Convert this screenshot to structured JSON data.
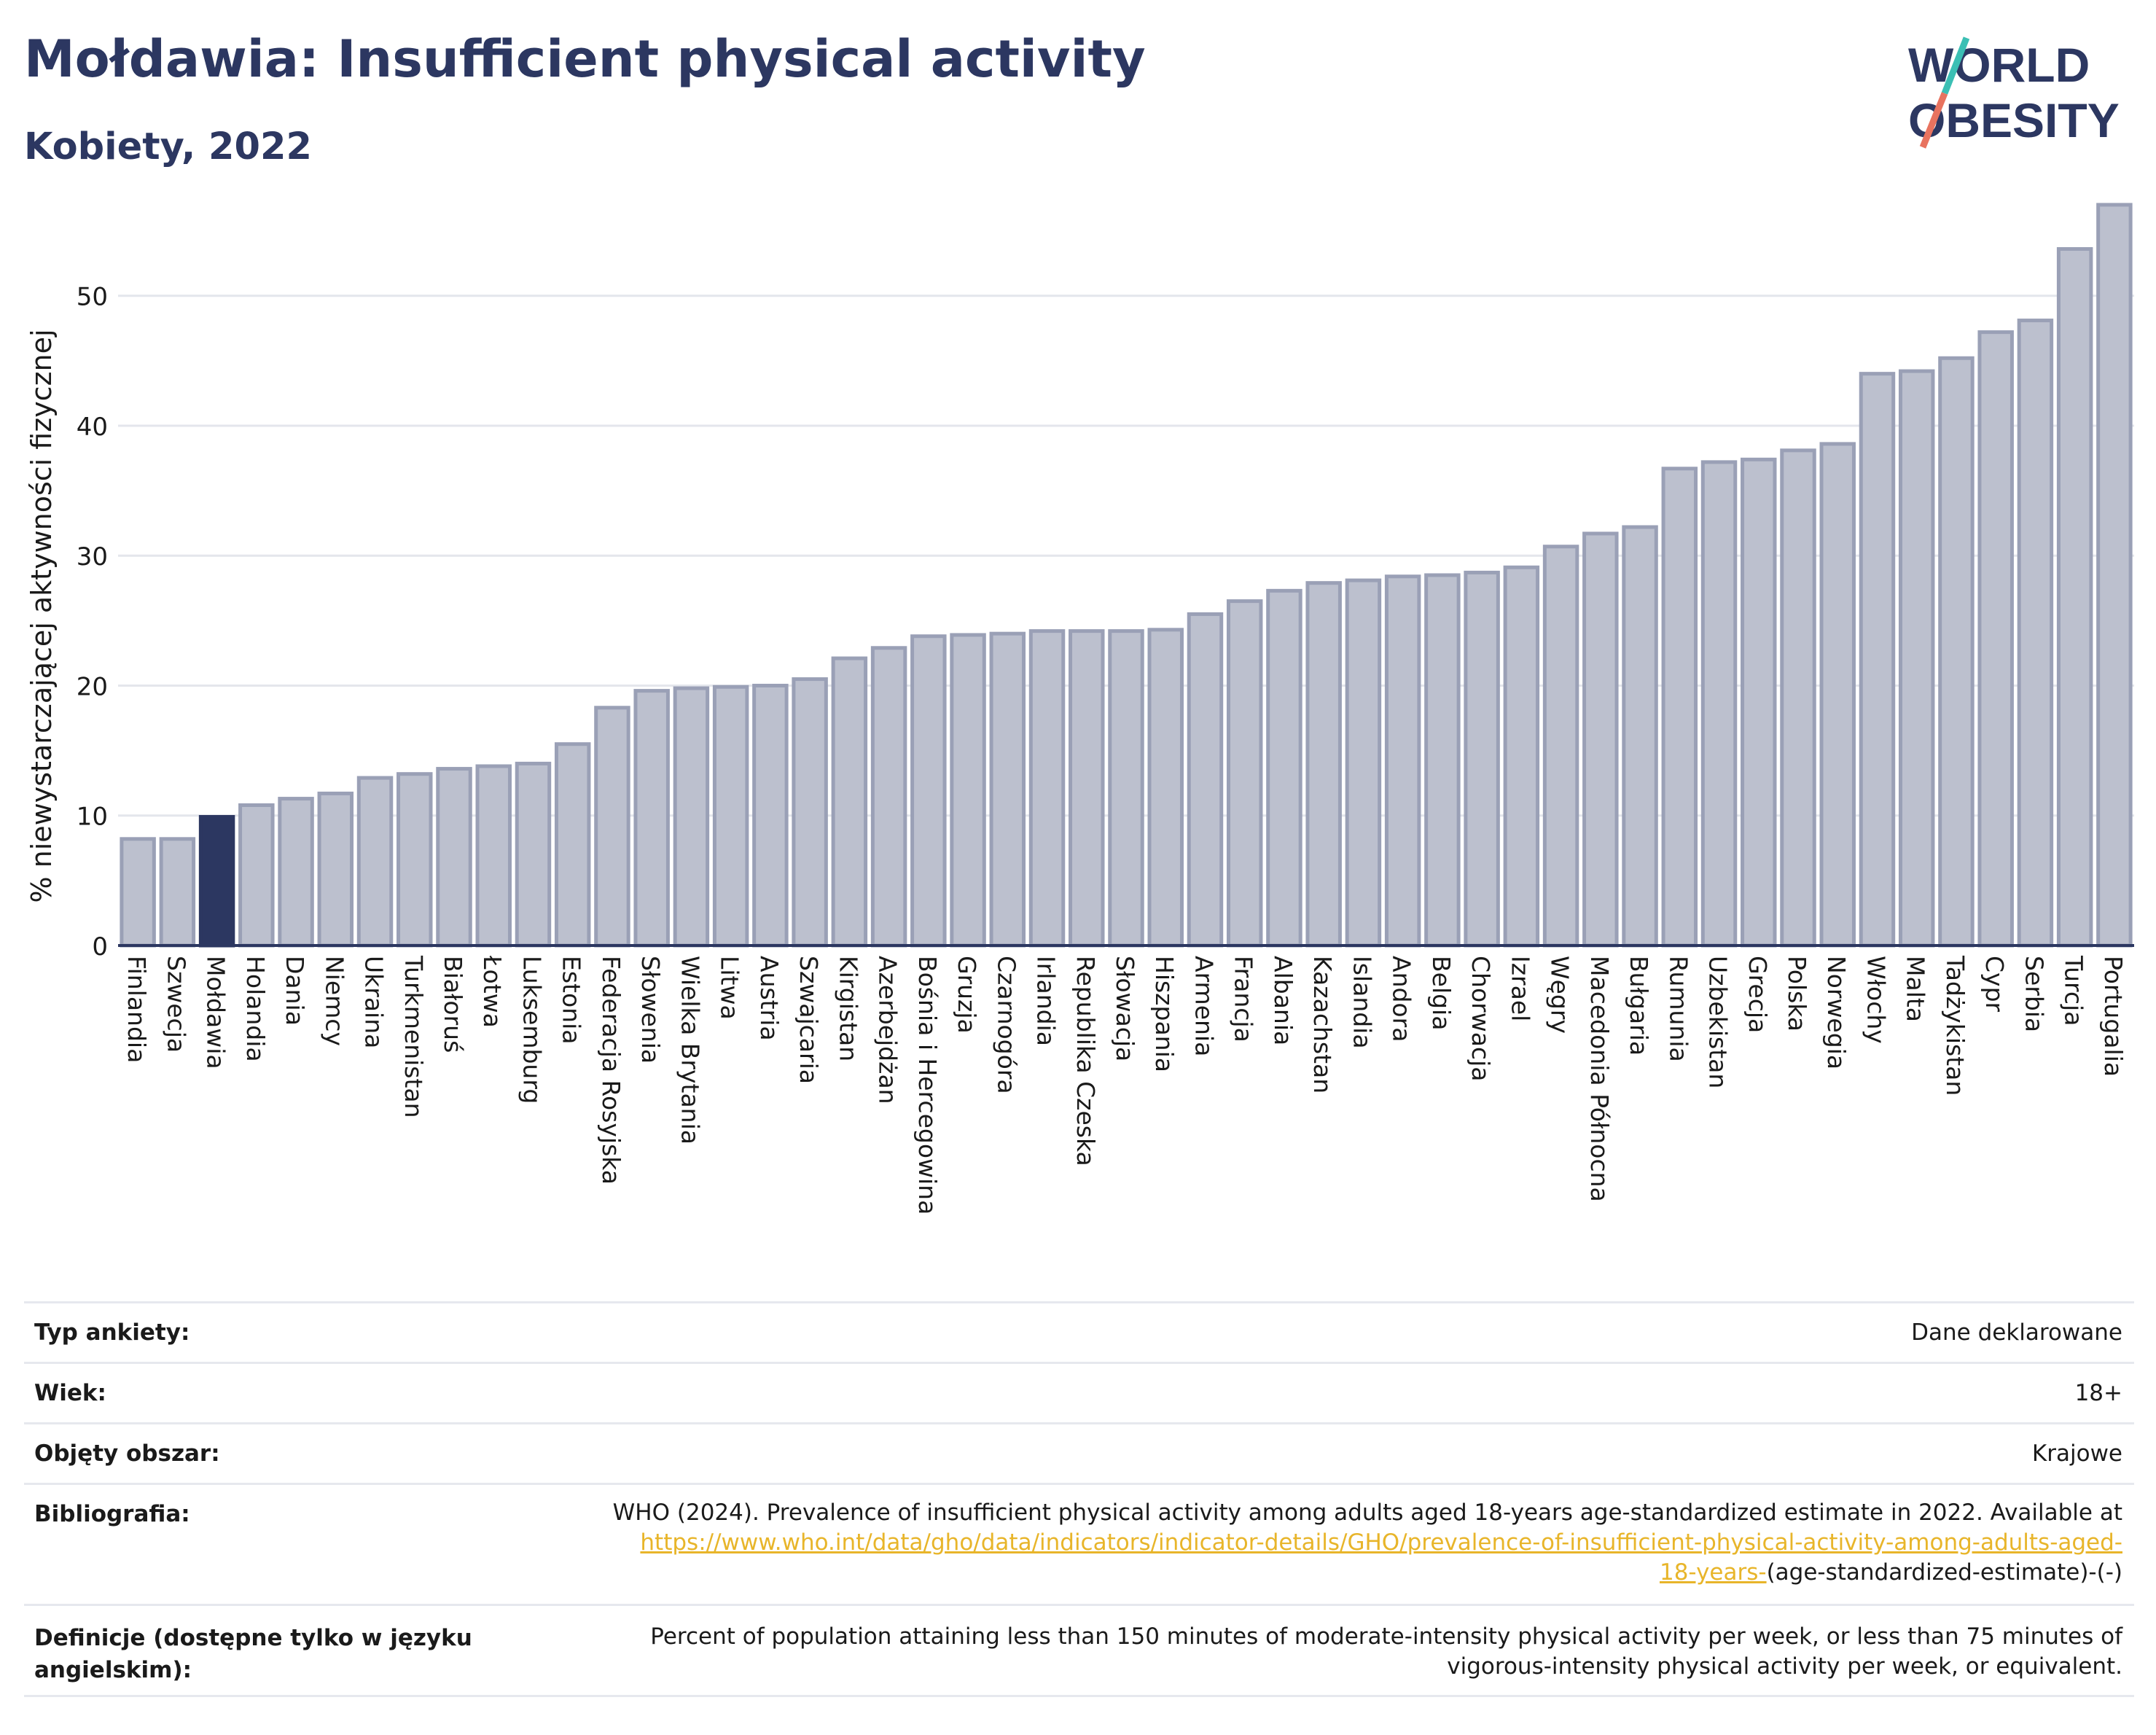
{
  "header": {
    "title": "Mołdawia: Insufficient physical activity",
    "subtitle": "Kobiety, 2022"
  },
  "logo": {
    "line1": "WORLD",
    "line2": "OBESITY"
  },
  "colors": {
    "highlight_bar": "#2c3761",
    "default_bar": "#bcc0ce",
    "default_bar_stroke": "#9aa0b6",
    "title": "#2c3761",
    "link": "#e8b52a",
    "logo_accent_teal": "#3bbfb4",
    "logo_accent_coral": "#e8735f"
  },
  "chart_data": {
    "type": "bar",
    "ylabel": "% niewystarczającej aktywności fizycznej",
    "ylim": [
      0,
      57.5
    ],
    "yticks": [
      0,
      10,
      20,
      30,
      40,
      50
    ],
    "grid": true,
    "highlight": "Mołdawia",
    "categories": [
      "Finlandia",
      "Szwecja",
      "Mołdawia",
      "Holandia",
      "Dania",
      "Niemcy",
      "Ukraina",
      "Turkmenistan",
      "Białoruś",
      "Łotwa",
      "Luksemburg",
      "Estonia",
      "Federacja Rosyjska",
      "Słowenia",
      "Wielka Brytania",
      "Litwa",
      "Austria",
      "Szwajcaria",
      "Kirgistan",
      "Azerbejdżan",
      "Bośnia i Hercegowina",
      "Gruzja",
      "Czarnogóra",
      "Irlandia",
      "Republika Czeska",
      "Słowacja",
      "Hiszpania",
      "Armenia",
      "Francja",
      "Albania",
      "Kazachstan",
      "Islandia",
      "Andora",
      "Belgia",
      "Chorwacja",
      "Izrael",
      "Węgry",
      "Macedonia Północna",
      "Bułgaria",
      "Rumunia",
      "Uzbekistan",
      "Grecja",
      "Polska",
      "Norwegia",
      "Włochy",
      "Malta",
      "Tadżykistan",
      "Cypr",
      "Serbia",
      "Turcja",
      "Portugalia"
    ],
    "values": [
      8.2,
      8.2,
      9.9,
      10.8,
      11.3,
      11.7,
      12.9,
      13.2,
      13.6,
      13.8,
      14.0,
      15.5,
      18.3,
      19.6,
      19.8,
      19.9,
      20.0,
      20.5,
      22.1,
      22.9,
      23.8,
      23.9,
      24.0,
      24.2,
      24.2,
      24.2,
      24.3,
      25.5,
      26.5,
      27.3,
      27.9,
      28.1,
      28.4,
      28.5,
      28.7,
      29.1,
      30.7,
      31.7,
      32.2,
      36.7,
      37.2,
      37.4,
      38.1,
      38.6,
      44.0,
      44.2,
      45.2,
      47.2,
      48.1,
      53.6,
      57.0
    ]
  },
  "info": {
    "survey_label": "Typ ankiety:",
    "survey_value": "Dane deklarowane",
    "age_label": "Wiek:",
    "age_value": "18+",
    "area_label": "Objęty obszar:",
    "area_value": "Krajowe",
    "bib_label": "Bibliografia:",
    "bib_text": "WHO (2024). Prevalence of insufficient physical activity among adults aged 18-years age-standardized estimate in 2022. Available at",
    "bib_link_1": "https://www.who.int/data/gho/data/indicators/indicator-details/GHO/prevalence-of-insufficient-physical-activity-among-adults-aged-",
    "bib_link_2": "18-years-",
    "bib_suffix": "(age-standardized-estimate)-(-)",
    "def_label": "Definicje (dostępne tylko w języku angielskim):",
    "def_text_1": "Percent of population attaining less than 150 minutes of moderate-intensity physical activity per week, or less than 75 minutes of",
    "def_text_2": "vigorous-intensity physical activity per week, or equivalent."
  }
}
